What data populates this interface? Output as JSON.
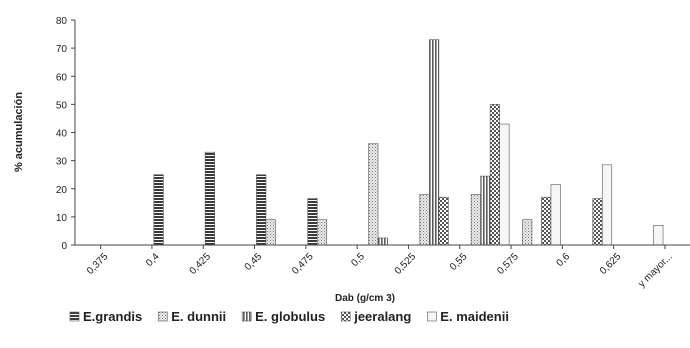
{
  "chart_data": {
    "type": "bar",
    "title": "",
    "xlabel": "Dab (g/cm 3)",
    "ylabel": "% acumulación",
    "ylim": [
      0,
      80
    ],
    "yticks": [
      0,
      10,
      20,
      30,
      40,
      50,
      60,
      70,
      80
    ],
    "grid": false,
    "legend_position": "bottom",
    "categories": [
      "0,375",
      "0,4",
      "0,425",
      "0,45",
      "0,475",
      "0,5",
      "0,525",
      "0,55",
      "0,575",
      "0,6",
      "0,625",
      "y mayor..."
    ],
    "series": [
      {
        "name": "E.grandis",
        "pattern": "hstripe",
        "values": [
          0,
          25,
          33,
          25,
          16.5,
          0,
          0,
          0,
          0,
          0,
          0,
          0
        ]
      },
      {
        "name": "E. dunnii",
        "pattern": "dots",
        "values": [
          0,
          0,
          0,
          9,
          9,
          36,
          18,
          18,
          9,
          0,
          0,
          0
        ]
      },
      {
        "name": "E. globulus",
        "pattern": "vstripe",
        "values": [
          0,
          0,
          0,
          0,
          0,
          2.5,
          73,
          24.5,
          0,
          0,
          0,
          0
        ]
      },
      {
        "name": "jeeralang",
        "pattern": "checker",
        "values": [
          0,
          0,
          0,
          0,
          0,
          0,
          17,
          50,
          17,
          16.5,
          0,
          0
        ]
      },
      {
        "name": "E. maidenii",
        "pattern": "white",
        "values": [
          0,
          0,
          0,
          0,
          0,
          0,
          0,
          43,
          21.5,
          28.5,
          7,
          0
        ]
      }
    ],
    "colors": {
      "stroke": "#555555",
      "axis": "#444444"
    }
  }
}
